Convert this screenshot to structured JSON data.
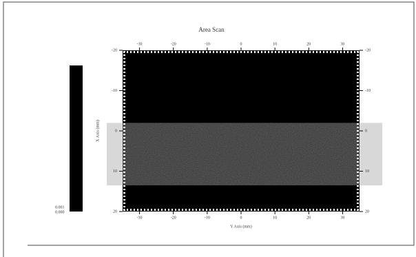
{
  "chart_data": {
    "type": "heatmap",
    "title": "Area Scan",
    "x_label": "Y Axis (mm)",
    "y_label": "X Axis (mm)",
    "xlim": [
      -35,
      35
    ],
    "xticks": [
      -30,
      -20,
      -10,
      0,
      10,
      20,
      30
    ],
    "ylim": [
      -20,
      20
    ],
    "yticks": [
      -20,
      -10,
      0,
      10,
      20
    ],
    "background_color": "#000000",
    "band": {
      "ylim": [
        -2,
        13.5
      ],
      "color": "#202020",
      "outer_color": "#d8d8d8"
    },
    "clim": [
      0,
      0.03
    ],
    "cticks": [
      {
        "value": 0,
        "label": "0.000"
      },
      0.001
    ],
    "colorbar_color": "#000000"
  }
}
